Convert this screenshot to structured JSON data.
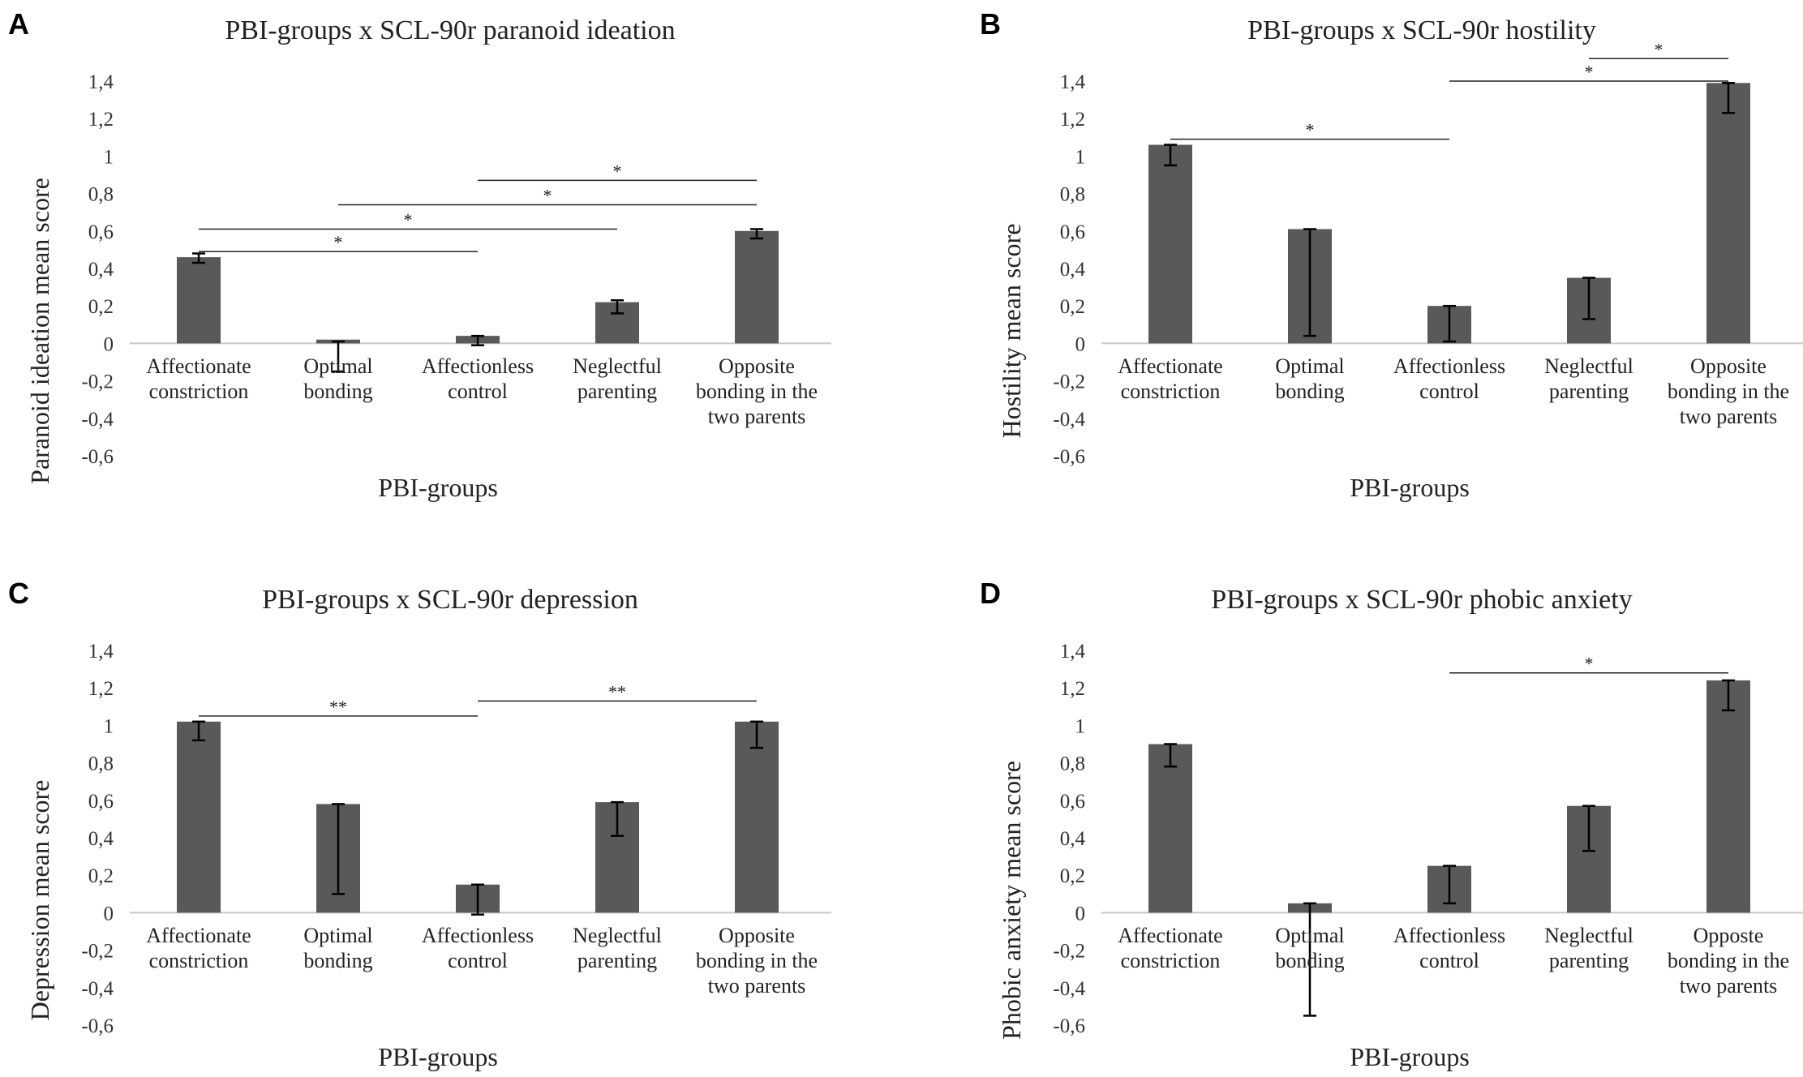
{
  "chart_data": [
    {
      "panel": "A",
      "type": "bar",
      "title": "PBI-groups x SCL-90r paranoid ideation",
      "xlabel": "PBI-groups",
      "ylabel": "Paranoid ideation mean score",
      "ylim": [
        -0.6,
        1.4
      ],
      "yticks": [
        "1,4",
        "1,2",
        "1",
        "0,8",
        "0,6",
        "0,4",
        "0,2",
        "0",
        "-0,2",
        "-0,4",
        "-0,6"
      ],
      "categories": [
        [
          "Affectionate",
          "constriction"
        ],
        [
          "Optimal",
          "bonding"
        ],
        [
          "Affectionless",
          "control"
        ],
        [
          "Neglectful",
          "parenting"
        ],
        [
          "Opposite",
          "bonding in the",
          "two parents"
        ]
      ],
      "values": [
        0.46,
        0.02,
        0.04,
        0.22,
        0.6
      ],
      "errors": [
        [
          0.43,
          0.48
        ],
        [
          -0.15,
          0.01
        ],
        [
          -0.01,
          0.04
        ],
        [
          0.16,
          0.23
        ],
        [
          0.56,
          0.61
        ]
      ],
      "significance": [
        {
          "from": 0,
          "to": 2,
          "label": "*",
          "y": 0.49
        },
        {
          "from": 0,
          "to": 3,
          "label": "*",
          "y": 0.61
        },
        {
          "from": 1,
          "to": 4,
          "label": "*",
          "y": 0.74
        },
        {
          "from": 2,
          "to": 4,
          "label": "*",
          "y": 0.87
        }
      ]
    },
    {
      "panel": "B",
      "type": "bar",
      "title": "PBI-groups x SCL-90r hostility",
      "xlabel": "PBI-groups",
      "ylabel": "Hostility mean score",
      "ylim": [
        -0.6,
        1.4
      ],
      "yticks": [
        "1,4",
        "1,2",
        "1",
        "0,8",
        "0,6",
        "0,4",
        "0,2",
        "0",
        "-0,2",
        "-0,4",
        "-0,6"
      ],
      "categories": [
        [
          "Affectionate",
          "constriction"
        ],
        [
          "Optimal",
          "bonding"
        ],
        [
          "Affectionless",
          "control"
        ],
        [
          "Neglectful",
          "parenting"
        ],
        [
          "Opposite",
          "bonding in the",
          "two parents"
        ]
      ],
      "values": [
        1.06,
        0.61,
        0.2,
        0.35,
        1.39
      ],
      "errors": [
        [
          0.95,
          1.06
        ],
        [
          0.04,
          0.61
        ],
        [
          0.01,
          0.2
        ],
        [
          0.13,
          0.35
        ],
        [
          1.23,
          1.39
        ]
      ],
      "significance": [
        {
          "from": 0,
          "to": 2,
          "label": "*",
          "y": 1.09
        },
        {
          "from": 2,
          "to": 4,
          "label": "*",
          "y": 1.4
        },
        {
          "from": 3,
          "to": 4,
          "label": "*",
          "y": 1.52
        }
      ]
    },
    {
      "panel": "C",
      "type": "bar",
      "title": "PBI-groups x SCL-90r depression",
      "xlabel": "PBI-groups",
      "ylabel": "Depression mean score",
      "ylim": [
        -0.6,
        1.4
      ],
      "yticks": [
        "1,4",
        "1,2",
        "1",
        "0,8",
        "0,6",
        "0,4",
        "0,2",
        "0",
        "-0,2",
        "-0,4",
        "-0,6"
      ],
      "categories": [
        [
          "Affectionate",
          "constriction"
        ],
        [
          "Optimal",
          "bonding"
        ],
        [
          "Affectionless",
          "control"
        ],
        [
          "Neglectful",
          "parenting"
        ],
        [
          "Opposite",
          "bonding in the",
          "two parents"
        ]
      ],
      "values": [
        1.02,
        0.58,
        0.15,
        0.59,
        1.02
      ],
      "errors": [
        [
          0.92,
          1.02
        ],
        [
          0.1,
          0.58
        ],
        [
          -0.01,
          0.15
        ],
        [
          0.41,
          0.59
        ],
        [
          0.88,
          1.02
        ]
      ],
      "significance": [
        {
          "from": 0,
          "to": 2,
          "label": "**",
          "y": 1.05
        },
        {
          "from": 2,
          "to": 4,
          "label": "**",
          "y": 1.13
        }
      ]
    },
    {
      "panel": "D",
      "type": "bar",
      "title": "PBI-groups x SCL-90r phobic anxiety",
      "xlabel": "PBI-groups",
      "ylabel": "Phobic anxiety mean score",
      "ylim": [
        -0.6,
        1.4
      ],
      "yticks": [
        "1,4",
        "1,2",
        "1",
        "0,8",
        "0,6",
        "0,4",
        "0,2",
        "0",
        "-0,2",
        "-0,4",
        "-0,6"
      ],
      "categories": [
        [
          "Affectionate",
          "constriction"
        ],
        [
          "Optimal",
          "bonding"
        ],
        [
          "Affectionless",
          "control"
        ],
        [
          "Neglectful",
          "parenting"
        ],
        [
          "Opposte",
          "bonding in the",
          "two parents"
        ]
      ],
      "values": [
        0.9,
        0.05,
        0.25,
        0.57,
        1.24
      ],
      "errors": [
        [
          0.78,
          0.9
        ],
        [
          -0.55,
          0.05
        ],
        [
          0.05,
          0.25
        ],
        [
          0.33,
          0.57
        ],
        [
          1.08,
          1.24
        ]
      ],
      "significance": [
        {
          "from": 2,
          "to": 4,
          "label": "*",
          "y": 1.28
        }
      ]
    }
  ],
  "style": {
    "bar_color": "#595959",
    "axis_color": "#c8c8c8",
    "sig_line_color": "#222222",
    "error_color": "#000000"
  }
}
